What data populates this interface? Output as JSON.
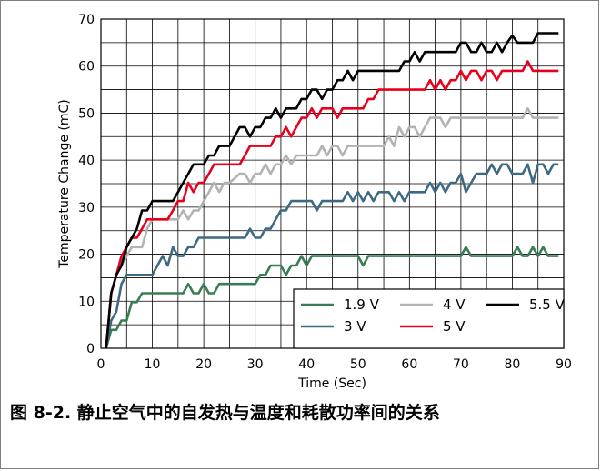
{
  "caption": "图 8-2. 静止空气中的自发热与温度和耗散功率间的关系",
  "chart_data": {
    "type": "line",
    "xlabel": "Time (Sec)",
    "ylabel": "Temperature Change (mC)",
    "xlim": [
      0,
      90
    ],
    "ylim": [
      0,
      70
    ],
    "xticks": [
      "0",
      "10",
      "20",
      "30",
      "40",
      "50",
      "60",
      "70",
      "80",
      "90"
    ],
    "yticks": [
      "0",
      "10",
      "20",
      "30",
      "40",
      "50",
      "60",
      "70"
    ],
    "grid": true,
    "legend_position": "bottom-right",
    "series": [
      {
        "name": "1.9 V",
        "color": "#3a7d55",
        "points": [
          [
            1,
            0
          ],
          [
            2,
            3.9
          ],
          [
            3,
            3.9
          ],
          [
            4,
            5.9
          ],
          [
            5,
            5.9
          ],
          [
            6,
            9.8
          ],
          [
            7,
            9.8
          ],
          [
            8,
            11.7
          ],
          [
            10,
            11.7
          ],
          [
            12,
            11.7
          ],
          [
            14,
            11.7
          ],
          [
            16,
            11.7
          ],
          [
            17,
            13.7
          ],
          [
            18,
            11.7
          ],
          [
            19,
            11.7
          ],
          [
            20,
            13.7
          ],
          [
            21,
            11.7
          ],
          [
            22,
            11.7
          ],
          [
            23,
            13.7
          ],
          [
            25,
            13.7
          ],
          [
            30,
            13.7
          ],
          [
            31,
            15.6
          ],
          [
            32,
            15.6
          ],
          [
            33,
            17.6
          ],
          [
            35,
            17.6
          ],
          [
            36,
            15.6
          ],
          [
            37,
            17.6
          ],
          [
            38,
            17.6
          ],
          [
            39,
            19.6
          ],
          [
            40,
            17.6
          ],
          [
            41,
            19.6
          ],
          [
            45,
            19.6
          ],
          [
            50,
            19.6
          ],
          [
            51,
            17.6
          ],
          [
            52,
            19.6
          ],
          [
            60,
            19.6
          ],
          [
            65,
            19.6
          ],
          [
            70,
            19.6
          ],
          [
            71,
            21.5
          ],
          [
            72,
            19.6
          ],
          [
            80,
            19.6
          ],
          [
            81,
            21.5
          ],
          [
            82,
            19.6
          ],
          [
            83,
            19.6
          ],
          [
            84,
            21.5
          ],
          [
            85,
            19.6
          ],
          [
            86,
            21.5
          ],
          [
            87,
            19.6
          ],
          [
            89,
            19.6
          ]
        ]
      },
      {
        "name": "3 V",
        "color": "#3d6a83",
        "points": [
          [
            1,
            0
          ],
          [
            2,
            5.9
          ],
          [
            3,
            7.8
          ],
          [
            4,
            13.7
          ],
          [
            5,
            15.6
          ],
          [
            8,
            15.6
          ],
          [
            10,
            15.6
          ],
          [
            11,
            17.6
          ],
          [
            12,
            19.6
          ],
          [
            13,
            17.6
          ],
          [
            14,
            21.5
          ],
          [
            15,
            19.6
          ],
          [
            16,
            19.6
          ],
          [
            17,
            21.5
          ],
          [
            18,
            21.5
          ],
          [
            19,
            23.5
          ],
          [
            20,
            23.5
          ],
          [
            25,
            23.5
          ],
          [
            28,
            23.5
          ],
          [
            29,
            25.4
          ],
          [
            30,
            23.5
          ],
          [
            31,
            23.5
          ],
          [
            32,
            25.4
          ],
          [
            33,
            25.4
          ],
          [
            34,
            27.4
          ],
          [
            35,
            29.3
          ],
          [
            36,
            29.3
          ],
          [
            37,
            31.3
          ],
          [
            38,
            31.3
          ],
          [
            40,
            31.3
          ],
          [
            41,
            31.3
          ],
          [
            42,
            29.3
          ],
          [
            43,
            31.3
          ],
          [
            45,
            31.3
          ],
          [
            47,
            31.3
          ],
          [
            48,
            33.2
          ],
          [
            49,
            31.3
          ],
          [
            50,
            33.2
          ],
          [
            51,
            31.3
          ],
          [
            52,
            33.2
          ],
          [
            53,
            31.3
          ],
          [
            54,
            33.2
          ],
          [
            56,
            33.2
          ],
          [
            57,
            31.3
          ],
          [
            58,
            33.2
          ],
          [
            59,
            31.3
          ],
          [
            60,
            33.2
          ],
          [
            63,
            33.2
          ],
          [
            64,
            35.2
          ],
          [
            65,
            33.2
          ],
          [
            66,
            35.2
          ],
          [
            67,
            33.2
          ],
          [
            68,
            35.2
          ],
          [
            69,
            35.2
          ],
          [
            70,
            37.1
          ],
          [
            71,
            33.2
          ],
          [
            72,
            35.2
          ],
          [
            73,
            37.1
          ],
          [
            74,
            37.1
          ],
          [
            75,
            37.1
          ],
          [
            76,
            39.1
          ],
          [
            77,
            37.1
          ],
          [
            78,
            39.1
          ],
          [
            79,
            39.1
          ],
          [
            80,
            37.1
          ],
          [
            82,
            37.1
          ],
          [
            83,
            39.1
          ],
          [
            84,
            35.2
          ],
          [
            85,
            39.1
          ],
          [
            86,
            39.1
          ],
          [
            87,
            37.1
          ],
          [
            88,
            39.1
          ],
          [
            89,
            39.1
          ]
        ]
      },
      {
        "name": "4 V",
        "color": "#b3b3b3",
        "points": [
          [
            1,
            0
          ],
          [
            2,
            11.7
          ],
          [
            3,
            15.6
          ],
          [
            4,
            17.6
          ],
          [
            5,
            19.6
          ],
          [
            6,
            21.5
          ],
          [
            8,
            21.5
          ],
          [
            9,
            25.4
          ],
          [
            10,
            27.4
          ],
          [
            15,
            27.4
          ],
          [
            16,
            29.3
          ],
          [
            17,
            27.4
          ],
          [
            18,
            29.3
          ],
          [
            19,
            29.3
          ],
          [
            20,
            31.3
          ],
          [
            21,
            33.2
          ],
          [
            22,
            35.2
          ],
          [
            23,
            33.2
          ],
          [
            24,
            35.2
          ],
          [
            25,
            35.2
          ],
          [
            27,
            37.1
          ],
          [
            28,
            37.1
          ],
          [
            29,
            35.2
          ],
          [
            30,
            37.1
          ],
          [
            31,
            37.1
          ],
          [
            32,
            39.1
          ],
          [
            33,
            37.1
          ],
          [
            34,
            39.1
          ],
          [
            35,
            39.1
          ],
          [
            36,
            41
          ],
          [
            37,
            39.1
          ],
          [
            38,
            41
          ],
          [
            40,
            41
          ],
          [
            42,
            41
          ],
          [
            43,
            43
          ],
          [
            44,
            41
          ],
          [
            45,
            43
          ],
          [
            46,
            43
          ],
          [
            47,
            41
          ],
          [
            48,
            43
          ],
          [
            49,
            43
          ],
          [
            50,
            43
          ],
          [
            55,
            43
          ],
          [
            56,
            45
          ],
          [
            57,
            43
          ],
          [
            58,
            47
          ],
          [
            59,
            45
          ],
          [
            60,
            47
          ],
          [
            61,
            47
          ],
          [
            62,
            45
          ],
          [
            63,
            47
          ],
          [
            64,
            49
          ],
          [
            65,
            49
          ],
          [
            66,
            49
          ],
          [
            67,
            47
          ],
          [
            68,
            49
          ],
          [
            70,
            49
          ],
          [
            75,
            49
          ],
          [
            80,
            49
          ],
          [
            82,
            49
          ],
          [
            83,
            51
          ],
          [
            84,
            49
          ],
          [
            86,
            49
          ],
          [
            89,
            49
          ]
        ]
      },
      {
        "name": "5 V",
        "color": "#e8001c",
        "points": [
          [
            1,
            0
          ],
          [
            2,
            11.7
          ],
          [
            3,
            15.6
          ],
          [
            4,
            19.6
          ],
          [
            5,
            21.5
          ],
          [
            6,
            23.5
          ],
          [
            7,
            23.5
          ],
          [
            8,
            25.4
          ],
          [
            9,
            27.4
          ],
          [
            10,
            27.4
          ],
          [
            13,
            27.4
          ],
          [
            14,
            29.3
          ],
          [
            15,
            31.3
          ],
          [
            16,
            31.3
          ],
          [
            17,
            35.2
          ],
          [
            18,
            33.2
          ],
          [
            19,
            35.2
          ],
          [
            20,
            35.2
          ],
          [
            21,
            37.1
          ],
          [
            22,
            39.1
          ],
          [
            25,
            39.1
          ],
          [
            27,
            39.1
          ],
          [
            28,
            41
          ],
          [
            29,
            43
          ],
          [
            30,
            43
          ],
          [
            33,
            43
          ],
          [
            34,
            45
          ],
          [
            35,
            45
          ],
          [
            36,
            47
          ],
          [
            37,
            45
          ],
          [
            38,
            47
          ],
          [
            39,
            49
          ],
          [
            40,
            49
          ],
          [
            41,
            51
          ],
          [
            42,
            49
          ],
          [
            43,
            51
          ],
          [
            45,
            51
          ],
          [
            46,
            49
          ],
          [
            47,
            51
          ],
          [
            50,
            51
          ],
          [
            51,
            51
          ],
          [
            52,
            53
          ],
          [
            53,
            53
          ],
          [
            54,
            55
          ],
          [
            55,
            55
          ],
          [
            60,
            55
          ],
          [
            63,
            55
          ],
          [
            64,
            57
          ],
          [
            65,
            55
          ],
          [
            66,
            57
          ],
          [
            67,
            55
          ],
          [
            68,
            57
          ],
          [
            69,
            57
          ],
          [
            70,
            59
          ],
          [
            71,
            57
          ],
          [
            72,
            59
          ],
          [
            73,
            59
          ],
          [
            74,
            57
          ],
          [
            75,
            59
          ],
          [
            76,
            59
          ],
          [
            77,
            57
          ],
          [
            78,
            59
          ],
          [
            80,
            59
          ],
          [
            82,
            59
          ],
          [
            83,
            61
          ],
          [
            84,
            59
          ],
          [
            89,
            59
          ]
        ]
      },
      {
        "name": "5.5 V",
        "color": "#000000",
        "points": [
          [
            1,
            0
          ],
          [
            2,
            11.7
          ],
          [
            3,
            15.6
          ],
          [
            4,
            17.6
          ],
          [
            5,
            21.5
          ],
          [
            6,
            23.5
          ],
          [
            7,
            25.4
          ],
          [
            8,
            29.3
          ],
          [
            9,
            29.3
          ],
          [
            10,
            31.3
          ],
          [
            12,
            31.3
          ],
          [
            14,
            31.3
          ],
          [
            15,
            33.2
          ],
          [
            16,
            35.2
          ],
          [
            17,
            37.1
          ],
          [
            18,
            39.1
          ],
          [
            20,
            39.1
          ],
          [
            21,
            41
          ],
          [
            22,
            41
          ],
          [
            23,
            43
          ],
          [
            24,
            43
          ],
          [
            25,
            43
          ],
          [
            26,
            45
          ],
          [
            27,
            47
          ],
          [
            28,
            47
          ],
          [
            29,
            45
          ],
          [
            30,
            47
          ],
          [
            31,
            47
          ],
          [
            32,
            49
          ],
          [
            33,
            49
          ],
          [
            34,
            51
          ],
          [
            35,
            49
          ],
          [
            36,
            51
          ],
          [
            38,
            51
          ],
          [
            39,
            53
          ],
          [
            40,
            53
          ],
          [
            41,
            55
          ],
          [
            42,
            55
          ],
          [
            43,
            53
          ],
          [
            44,
            55
          ],
          [
            45,
            55
          ],
          [
            46,
            57
          ],
          [
            47,
            57
          ],
          [
            48,
            59
          ],
          [
            49,
            57
          ],
          [
            50,
            59
          ],
          [
            55,
            59
          ],
          [
            58,
            59
          ],
          [
            59,
            61
          ],
          [
            60,
            61
          ],
          [
            61,
            63
          ],
          [
            62,
            61
          ],
          [
            63,
            63
          ],
          [
            65,
            63
          ],
          [
            68,
            63
          ],
          [
            69,
            63
          ],
          [
            70,
            65
          ],
          [
            71,
            65
          ],
          [
            72,
            63
          ],
          [
            73,
            63
          ],
          [
            74,
            65
          ],
          [
            75,
            63
          ],
          [
            76,
            63
          ],
          [
            77,
            65
          ],
          [
            78,
            63
          ],
          [
            79,
            65
          ],
          [
            80,
            66.5
          ],
          [
            81,
            65
          ],
          [
            84,
            65
          ],
          [
            85,
            67
          ],
          [
            89,
            67
          ]
        ]
      }
    ]
  }
}
